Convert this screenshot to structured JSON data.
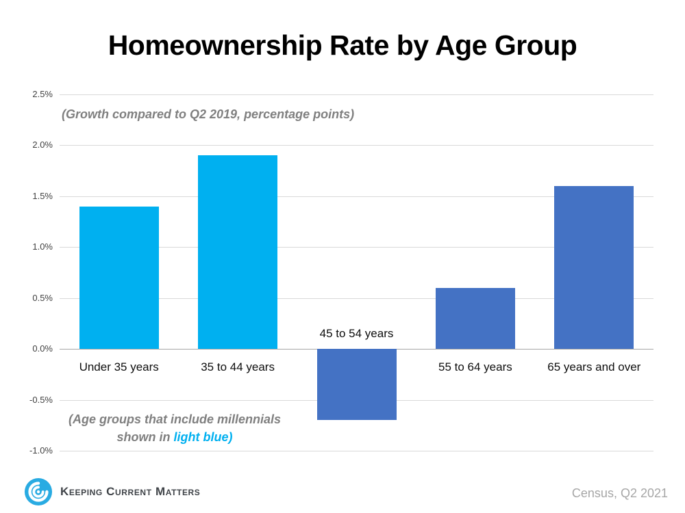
{
  "chart_data": {
    "type": "bar",
    "title": "Homeownership Rate by Age Group",
    "subtitle": "(Growth compared to Q2 2019, percentage points)",
    "categories": [
      "Under 35 years",
      "35 to 44 years",
      "45 to 54 years",
      "55 to 64 years",
      "65 years and over"
    ],
    "values": [
      1.4,
      1.9,
      -0.7,
      0.6,
      1.6
    ],
    "unit": "percentage points vs Q2 2019",
    "bar_colors": [
      "#00B0F0",
      "#00B0F0",
      "#4472C4",
      "#4472C4",
      "#4472C4"
    ],
    "yticks": [
      "2.5%",
      "2.0%",
      "1.5%",
      "1.0%",
      "0.5%",
      "0.0%",
      "-0.5%",
      "-1.0%"
    ],
    "ylim": [
      -1.0,
      2.5
    ],
    "grid": true,
    "legend": "none",
    "xlabel": "",
    "ylabel": ""
  },
  "annotation": {
    "line1": "(Age groups that include millennials",
    "line2_prefix": "shown in ",
    "line2_highlight": "light blue)",
    "highlight_color": "#00B0F0"
  },
  "footer": {
    "brand": "Keeping Current Matters",
    "source": "Census, Q2 2021"
  },
  "colors": {
    "light_blue": "#00B0F0",
    "dark_blue": "#4472C4",
    "gridline": "#D9D9D9",
    "axis_line": "#A6A6A6",
    "subtitle_gray": "#7F7F7F",
    "source_gray": "#A6A6A6",
    "logo_blue": "#29ABE2"
  }
}
